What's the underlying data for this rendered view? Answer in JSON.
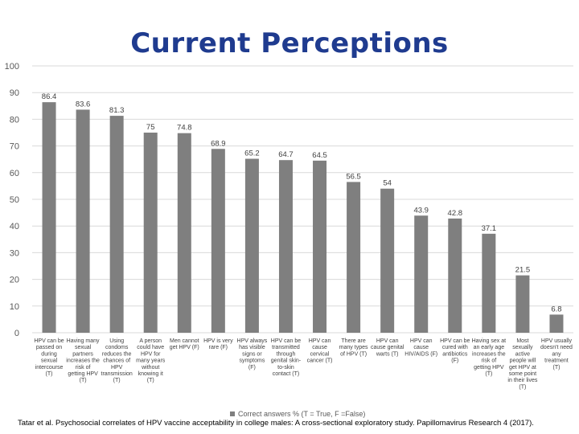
{
  "slide": {
    "title": "Current Perceptions",
    "citation": "Tatar et al. Psychosocial correlates of HPV vaccine acceptability in college males: A cross-sectional exploratory study. Papillomavirus Research 4 (2017)."
  },
  "colors": {
    "bar": "#7f7f7f",
    "grid": "#d9d9d9",
    "title": "#1f3b8f"
  },
  "chart_data": {
    "type": "bar",
    "title": "",
    "xlabel": "",
    "ylabel": "",
    "ylim": [
      0,
      100
    ],
    "yticks": [
      0,
      10,
      20,
      30,
      40,
      50,
      60,
      70,
      80,
      90,
      100
    ],
    "grid": true,
    "legend_position": "bottom",
    "categories": [
      "HPV can be passed on during sexual intercourse (T)",
      "Having many sexual partners increases the risk of getting HPV (T)",
      "Using condoms reduces the chances of HPV transmission (T)",
      "A person could have HPV for many years without knowing it (T)",
      "Men cannot get HPV (F)",
      "HPV is very rare (F)",
      "HPV always has visible signs or symptoms (F)",
      "HPV can be transmitted through genital skin-to-skin contact (T)",
      "HPV can cause cervical cancer (T)",
      "There are many types of HPV (T)",
      "HPV can cause genital warts (T)",
      "HPV can cause HIV/AIDS (F)",
      "HPV can be cured with antibiotics (F)",
      "Having sex at an early age increases the risk of getting HPV (T)",
      "Most sexually active people will get HPV at some point in their lives (T)",
      "HPV usually doesn't need any treatment (T)"
    ],
    "category_lines": [
      [
        "HPV can be",
        "passed on",
        "during",
        "sexual",
        "intercourse",
        "(T)"
      ],
      [
        "Having many",
        "sexual",
        "partners",
        "increases the",
        "risk of",
        "getting HPV",
        "(T)"
      ],
      [
        "Using",
        "condoms",
        "reduces the",
        "chances of",
        "HPV",
        "transmission",
        "(T)"
      ],
      [
        "A person",
        "could have",
        "HPV for",
        "many years",
        "without",
        "knowing it",
        "(T)"
      ],
      [
        "Men cannot",
        "get HPV (F)"
      ],
      [
        "HPV is very",
        "rare (F)"
      ],
      [
        "HPV always",
        "has visible",
        "signs or",
        "symptoms",
        "(F)"
      ],
      [
        "HPV can be",
        "transmitted",
        "through",
        "genital skin-",
        "to-skin",
        "contact (T)"
      ],
      [
        "HPV can",
        "cause",
        "cervical",
        "cancer (T)"
      ],
      [
        "There are",
        "many types",
        "of HPV (T)"
      ],
      [
        "HPV can",
        "cause genital",
        "warts (T)"
      ],
      [
        "HPV can",
        "cause",
        "HIV/AIDS (F)"
      ],
      [
        "HPV can be",
        "cured with",
        "antibiotics",
        "(F)"
      ],
      [
        "Having sex at",
        "an early age",
        "increases the",
        "risk of",
        "getting HPV",
        "(T)"
      ],
      [
        "Most",
        "sexually",
        "active",
        "people will",
        "get HPV at",
        "some point",
        "in their lives",
        "(T)"
      ],
      [
        "HPV usually",
        "doesn't need",
        "any",
        "treatment",
        "(T)"
      ]
    ],
    "series": [
      {
        "name": "Correct answers % (T = True, F =False)",
        "values": [
          86.4,
          83.6,
          81.3,
          75,
          74.8,
          68.9,
          65.2,
          64.7,
          64.5,
          56.5,
          54,
          43.9,
          42.8,
          37.1,
          21.5,
          6.8
        ]
      }
    ]
  }
}
